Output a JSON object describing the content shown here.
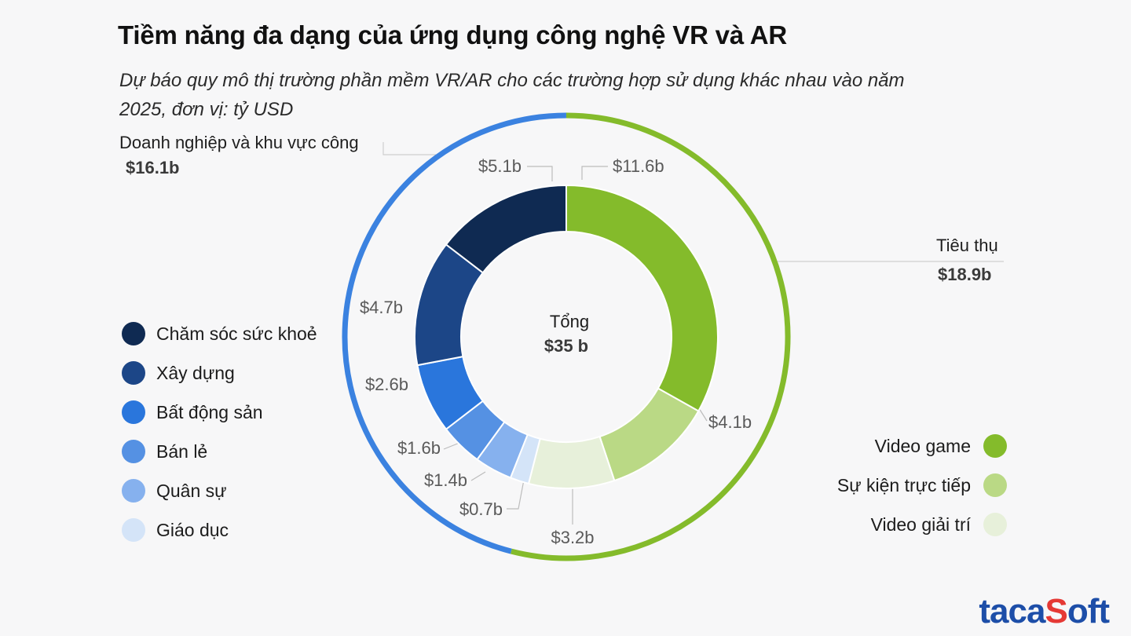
{
  "title": "Tiềm năng đa dạng của ứng dụng công nghệ VR và AR",
  "subtitle": "Dự báo quy mô thị trường phần mềm VR/AR cho các trường hợp sử dụng khác nhau vào năm 2025, đơn vị: tỷ USD",
  "center": {
    "label": "Tổng",
    "value": "$35 b"
  },
  "groups": {
    "enterprise": {
      "label": "Doanh nghiệp và khu vực công",
      "value": "$16.1b",
      "color": "#3b82e0"
    },
    "consumer": {
      "label": "Tiêu thụ",
      "value": "$18.9b",
      "color": "#84bb2b"
    }
  },
  "legend_left": [
    {
      "label": "Chăm sóc sức khoẻ",
      "color": "#0f2a52"
    },
    {
      "label": "Xây dựng",
      "color": "#1c4687"
    },
    {
      "label": "Bất động sản",
      "color": "#2a76dc"
    },
    {
      "label": "Bán lẻ",
      "color": "#5591e3"
    },
    {
      "label": "Quân sự",
      "color": "#86b1ee"
    },
    {
      "label": "Giáo dục",
      "color": "#d4e4f8"
    }
  ],
  "legend_right": [
    {
      "label": "Video game",
      "color": "#84bb2b"
    },
    {
      "label": "Sự kiện trực tiếp",
      "color": "#bad985"
    },
    {
      "label": "Video giải trí",
      "color": "#e7f0da"
    }
  ],
  "chart_data": {
    "type": "pie",
    "title": "Tiềm năng đa dạng của ứng dụng công nghệ VR và AR",
    "unit": "tỷ USD",
    "total": 35,
    "series": [
      {
        "name": "Video game",
        "value": 11.6,
        "label": "$11.6b",
        "group": "consumer",
        "color": "#84bb2b"
      },
      {
        "name": "Sự kiện trực tiếp",
        "value": 4.1,
        "label": "$4.1b",
        "group": "consumer",
        "color": "#bad985"
      },
      {
        "name": "Video giải trí",
        "value": 3.2,
        "label": "$3.2b",
        "group": "consumer",
        "color": "#e7f0da"
      },
      {
        "name": "Giáo dục",
        "value": 0.7,
        "label": "$0.7b",
        "group": "enterprise",
        "color": "#d4e4f8"
      },
      {
        "name": "Quân sự",
        "value": 1.4,
        "label": "$1.4b",
        "group": "enterprise",
        "color": "#86b1ee"
      },
      {
        "name": "Bán lẻ",
        "value": 1.6,
        "label": "$1.6b",
        "group": "enterprise",
        "color": "#5591e3"
      },
      {
        "name": "Bất động sản",
        "value": 2.6,
        "label": "$2.6b",
        "group": "enterprise",
        "color": "#2a76dc"
      },
      {
        "name": "Xây dựng",
        "value": 4.7,
        "label": "$4.7b",
        "group": "enterprise",
        "color": "#1c4687"
      },
      {
        "name": "Chăm sóc sức khoẻ",
        "value": 5.1,
        "label": "$5.1b",
        "group": "enterprise",
        "color": "#0f2a52"
      }
    ],
    "outer_ring": [
      {
        "name": "Tiêu thụ",
        "value": 18.9
      },
      {
        "name": "Doanh nghiệp và khu vực công",
        "value": 16.1
      }
    ]
  },
  "logo": {
    "main": "taca",
    "accent": "S",
    "rest": "oft"
  }
}
